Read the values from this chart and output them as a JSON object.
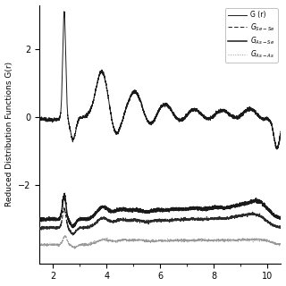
{
  "ylabel": "Reduced Distribution Functions G(r)",
  "xlim": [
    1.5,
    10.5
  ],
  "ylim": [
    -4.3,
    3.3
  ],
  "yticks": [
    -2.0,
    0.0,
    2.0
  ],
  "background_color": "#ffffff",
  "figsize": [
    3.2,
    3.2
  ],
  "dpi": 100
}
